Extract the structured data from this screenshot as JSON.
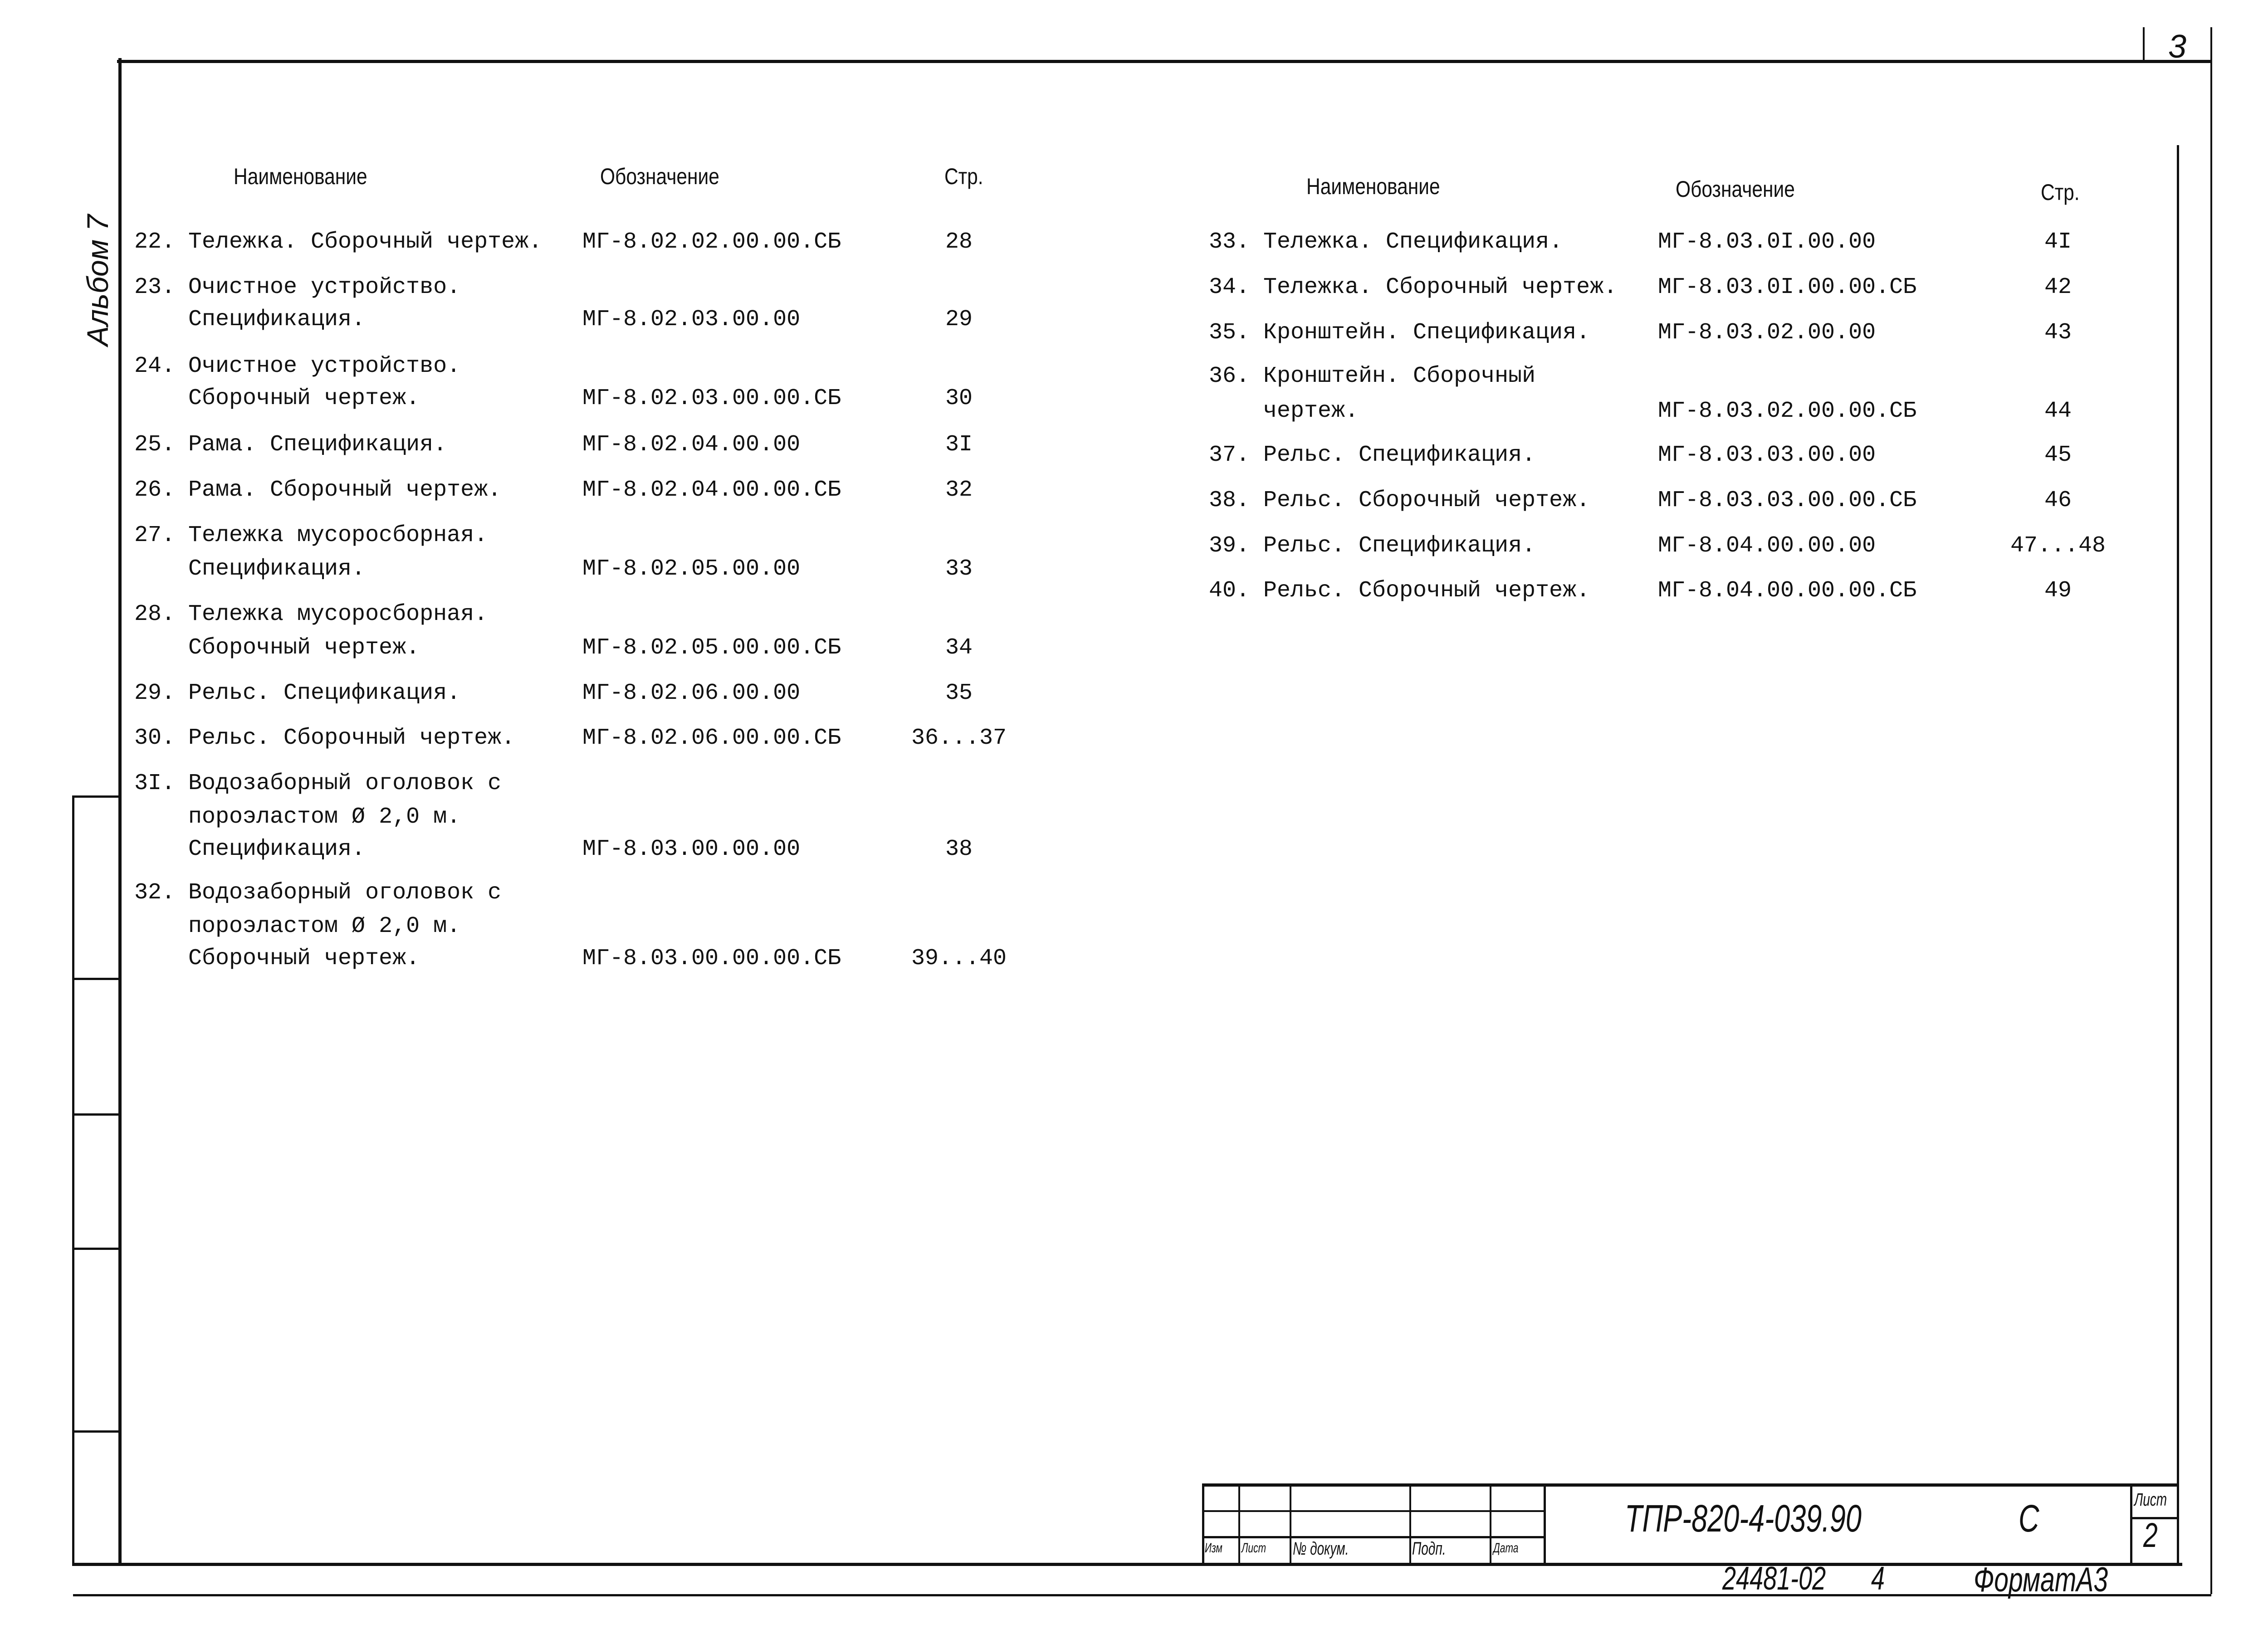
{
  "sheet_corner_number": "3",
  "side_stamp": "Альбом 7",
  "left_table": {
    "headers": {
      "name": "Наименование",
      "designation": "Обозначение",
      "page": "Стр."
    },
    "rows": [
      {
        "num": "22.",
        "lines": [
          "Тележка. Сборочный чертеж."
        ],
        "designation": "МГ-8.02.02.00.00.СБ",
        "page": "28"
      },
      {
        "num": "23.",
        "lines": [
          "Очистное устройство.",
          "Спецификация."
        ],
        "designation": "МГ-8.02.03.00.00",
        "page": "29"
      },
      {
        "num": "24.",
        "lines": [
          "Очистное устройство.",
          "Сборочный чертеж."
        ],
        "designation": "МГ-8.02.03.00.00.СБ",
        "page": "30"
      },
      {
        "num": "25.",
        "lines": [
          "Рама. Спецификация."
        ],
        "designation": "МГ-8.02.04.00.00",
        "page": "3I"
      },
      {
        "num": "26.",
        "lines": [
          "Рама. Сборочный чертеж."
        ],
        "designation": "МГ-8.02.04.00.00.СБ",
        "page": "32"
      },
      {
        "num": "27.",
        "lines": [
          "Тележка мусоросборная.",
          "Спецификация."
        ],
        "designation": "МГ-8.02.05.00.00",
        "page": "33"
      },
      {
        "num": "28.",
        "lines": [
          "Тележка мусоросборная.",
          "Сборочный чертеж."
        ],
        "designation": "МГ-8.02.05.00.00.СБ",
        "page": "34"
      },
      {
        "num": "29.",
        "lines": [
          "Рельс. Спецификация."
        ],
        "designation": "МГ-8.02.06.00.00",
        "page": "35"
      },
      {
        "num": "30.",
        "lines": [
          "Рельс. Сборочный чертеж."
        ],
        "designation": "МГ-8.02.06.00.00.СБ",
        "page": "36...37"
      },
      {
        "num": "3I.",
        "lines": [
          "Водозаборный оголовок с",
          "пороэластом Ø 2,0 м.",
          "Спецификация."
        ],
        "designation": "МГ-8.03.00.00.00",
        "page": "38"
      },
      {
        "num": "32.",
        "lines": [
          "Водозаборный оголовок с",
          "пороэластом Ø 2,0 м.",
          "Сборочный чертеж."
        ],
        "designation": "МГ-8.03.00.00.00.СБ",
        "page": "39...40"
      }
    ]
  },
  "right_table": {
    "headers": {
      "name": "Наименование",
      "designation": "Обозначение",
      "page": "Стр."
    },
    "rows": [
      {
        "num": "33.",
        "lines": [
          "Тележка. Спецификация."
        ],
        "designation": "МГ-8.03.0I.00.00",
        "page": "4I"
      },
      {
        "num": "34.",
        "lines": [
          "Тележка. Сборочный чертеж."
        ],
        "designation": "МГ-8.03.0I.00.00.СБ",
        "page": "42"
      },
      {
        "num": "35.",
        "lines": [
          "Кронштейн. Спецификация."
        ],
        "designation": "МГ-8.03.02.00.00",
        "page": "43"
      },
      {
        "num": "36.",
        "lines": [
          "Кронштейн. Сборочный",
          "чертеж."
        ],
        "designation": "МГ-8.03.02.00.00.СБ",
        "page": "44"
      },
      {
        "num": "37.",
        "lines": [
          "Рельс. Спецификация."
        ],
        "designation": "МГ-8.03.03.00.00",
        "page": "45"
      },
      {
        "num": "38.",
        "lines": [
          "Рельс. Сборочный чертеж."
        ],
        "designation": "МГ-8.03.03.00.00.СБ",
        "page": "46"
      },
      {
        "num": "39.",
        "lines": [
          "Рельс. Спецификация."
        ],
        "designation": "МГ-8.04.00.00.00",
        "page": "47...48"
      },
      {
        "num": "40.",
        "lines": [
          "Рельс. Сборочный чертеж."
        ],
        "designation": "МГ-8.04.00.00.00.СБ",
        "page": "49"
      }
    ]
  },
  "title_block": {
    "labels": {
      "izm": "Изм",
      "list": "Лист",
      "doc_no": "№ докум.",
      "sign": "Подп.",
      "date": "Дата"
    },
    "document_code": "ТПР-820-4-039.90",
    "letter": "С",
    "sheet_label": "Лист",
    "sheet_number": "2",
    "inventory": "24481-02",
    "copy": "4",
    "format": "ФорматА3"
  }
}
